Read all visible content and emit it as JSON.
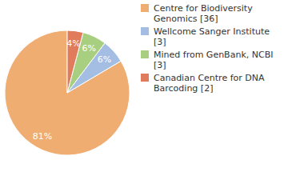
{
  "chart_data": {
    "type": "pie",
    "categories": [
      "Centre for Biodiversity Genomics [36]",
      "Wellcome Sanger Institute [3]",
      "Mined from GenBank, NCBI [3]",
      "Canadian Centre for DNA Barcoding [2]"
    ],
    "values": [
      81,
      6,
      6,
      4
    ],
    "value_labels": [
      "81%",
      "6%",
      "6%",
      "4%"
    ],
    "colors": [
      "#f0ad72",
      "#a3bde3",
      "#a8cf80",
      "#e07b5b"
    ],
    "data_labels": true,
    "legend": "right"
  }
}
